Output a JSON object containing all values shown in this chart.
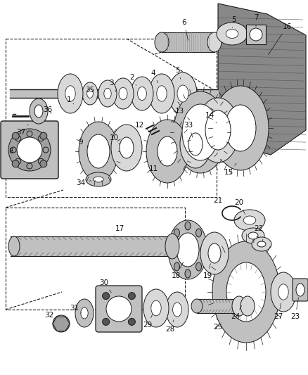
{
  "bg_color": "#ffffff",
  "fig_width": 4.38,
  "fig_height": 5.33,
  "dpi": 100,
  "black": "#1a1a1a",
  "gray1": "#d8d8d8",
  "gray2": "#c0c0c0",
  "gray3": "#a0a0a0",
  "gray4": "#e8e8e8"
}
